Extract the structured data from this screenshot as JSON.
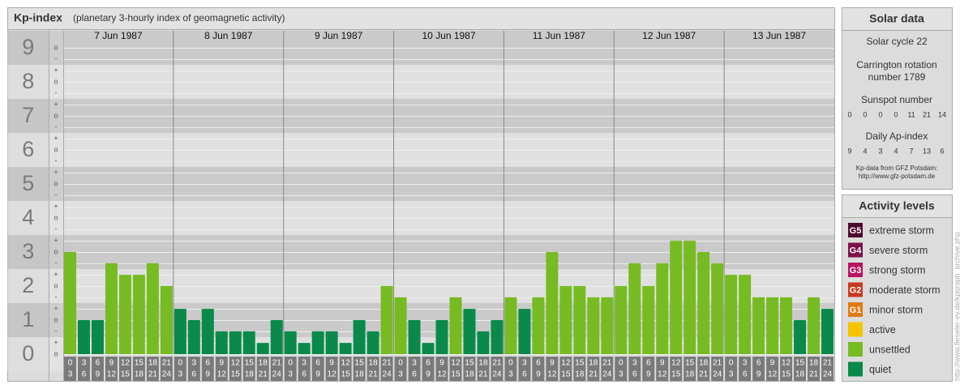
{
  "chart_data": {
    "type": "bar",
    "title": "Kp-index",
    "subtitle": "(planetary 3-hourly index of geomagnetic activity)",
    "categories": [
      "7 Jun 1987",
      "8 Jun 1987",
      "9 Jun 1987",
      "10 Jun 1987",
      "11 Jun 1987",
      "12 Jun 1987",
      "13 Jun 1987"
    ],
    "hour_labels": [
      [
        "0",
        "3"
      ],
      [
        "3",
        "6"
      ],
      [
        "6",
        "9"
      ],
      [
        "9",
        "12"
      ],
      [
        "12",
        "15"
      ],
      [
        "15",
        "18"
      ],
      [
        "18",
        "21"
      ],
      [
        "21",
        "24"
      ]
    ],
    "values": [
      [
        3,
        1,
        1,
        2.67,
        2.33,
        2.33,
        2.67,
        2
      ],
      [
        1.33,
        1,
        1.33,
        0.67,
        0.67,
        0.67,
        0.33,
        1
      ],
      [
        0.67,
        0.33,
        0.67,
        0.67,
        0.33,
        1,
        0.67,
        2
      ],
      [
        1.67,
        1,
        0.33,
        1,
        1.67,
        1.33,
        0.67,
        1
      ],
      [
        1.67,
        1.33,
        1.67,
        3,
        2,
        2,
        1.67,
        1.67
      ],
      [
        2,
        2.67,
        2,
        2.67,
        3.33,
        3.33,
        3,
        2.67
      ],
      [
        2.33,
        2.33,
        1.67,
        1.67,
        1.67,
        1,
        1.67,
        1.33
      ]
    ],
    "colors": [
      [
        "#77bb22",
        "#0a8a4a",
        "#0a8a4a",
        "#77bb22",
        "#77bb22",
        "#77bb22",
        "#77bb22",
        "#77bb22"
      ],
      [
        "#0a8a4a",
        "#0a8a4a",
        "#0a8a4a",
        "#0a8a4a",
        "#0a8a4a",
        "#0a8a4a",
        "#0a8a4a",
        "#0a8a4a"
      ],
      [
        "#0a8a4a",
        "#0a8a4a",
        "#0a8a4a",
        "#0a8a4a",
        "#0a8a4a",
        "#0a8a4a",
        "#0a8a4a",
        "#77bb22"
      ],
      [
        "#77bb22",
        "#0a8a4a",
        "#0a8a4a",
        "#0a8a4a",
        "#77bb22",
        "#0a8a4a",
        "#0a8a4a",
        "#0a8a4a"
      ],
      [
        "#77bb22",
        "#0a8a4a",
        "#77bb22",
        "#77bb22",
        "#77bb22",
        "#77bb22",
        "#77bb22",
        "#77bb22"
      ],
      [
        "#77bb22",
        "#77bb22",
        "#77bb22",
        "#77bb22",
        "#77bb22",
        "#77bb22",
        "#77bb22",
        "#77bb22"
      ],
      [
        "#77bb22",
        "#77bb22",
        "#77bb22",
        "#77bb22",
        "#77bb22",
        "#0a8a4a",
        "#77bb22",
        "#0a8a4a"
      ]
    ],
    "ylim": [
      0,
      9.5
    ],
    "yticks": [
      0,
      1,
      2,
      3,
      4,
      5,
      6,
      7,
      8,
      9
    ],
    "minor_yticks": [
      {
        "value": 0,
        "label": "o"
      },
      {
        "value": 0.33,
        "label": "+"
      },
      {
        "value": 0.67,
        "label": "-"
      },
      {
        "value": 1,
        "label": "o"
      },
      {
        "value": 1.33,
        "label": "+"
      },
      {
        "value": 1.67,
        "label": "-"
      },
      {
        "value": 2,
        "label": "o"
      },
      {
        "value": 2.33,
        "label": "+"
      },
      {
        "value": 2.67,
        "label": "-"
      },
      {
        "value": 3,
        "label": "o"
      },
      {
        "value": 3.33,
        "label": "+"
      },
      {
        "value": 3.67,
        "label": "-"
      },
      {
        "value": 4,
        "label": "o"
      },
      {
        "value": 4.33,
        "label": "+"
      },
      {
        "value": 4.67,
        "label": "-"
      },
      {
        "value": 5,
        "label": "o"
      },
      {
        "value": 5.33,
        "label": "+"
      },
      {
        "value": 5.67,
        "label": "-"
      },
      {
        "value": 6,
        "label": "o"
      },
      {
        "value": 6.33,
        "label": "+"
      },
      {
        "value": 6.67,
        "label": "-"
      },
      {
        "value": 7,
        "label": "o"
      },
      {
        "value": 7.33,
        "label": "+"
      },
      {
        "value": 7.67,
        "label": "-"
      },
      {
        "value": 8,
        "label": "o"
      },
      {
        "value": 8.33,
        "label": "+"
      },
      {
        "value": 8.67,
        "label": "-"
      },
      {
        "value": 9,
        "label": "o"
      }
    ],
    "grid": true
  },
  "solar_data": {
    "title": "Solar data",
    "cycle": "Solar cycle 22",
    "carrington_1": "Carrington rotation",
    "carrington_2": "number 1789",
    "sunspot_title": "Sunspot number",
    "sunspot": [
      0,
      0,
      0,
      0,
      11,
      21,
      14
    ],
    "ap_title": "Daily Ap-index",
    "ap": [
      9,
      4,
      3,
      4,
      7,
      13,
      6
    ],
    "source_1": "Kp-data from GFZ Potsdam:",
    "source_2": "http://www.gfz-potsdam.de"
  },
  "activity_levels": {
    "title": "Activity levels",
    "items": [
      {
        "badge": "G5",
        "label": "extreme storm",
        "color": "#4d0a2e"
      },
      {
        "badge": "G4",
        "label": "severe storm",
        "color": "#7d1048"
      },
      {
        "badge": "G3",
        "label": "strong storm",
        "color": "#b81463"
      },
      {
        "badge": "G2",
        "label": "moderate storm",
        "color": "#c83a1e"
      },
      {
        "badge": "G1",
        "label": "minor storm",
        "color": "#e07a12"
      },
      {
        "badge": "",
        "label": "active",
        "color": "#f5c400"
      },
      {
        "badge": "",
        "label": "unsettled",
        "color": "#77bb22"
      },
      {
        "badge": "",
        "label": "quiet",
        "color": "#0a8a4a"
      }
    ]
  },
  "side_url": "http://www.fieseler-ev.de/kpgraph_archive.php"
}
